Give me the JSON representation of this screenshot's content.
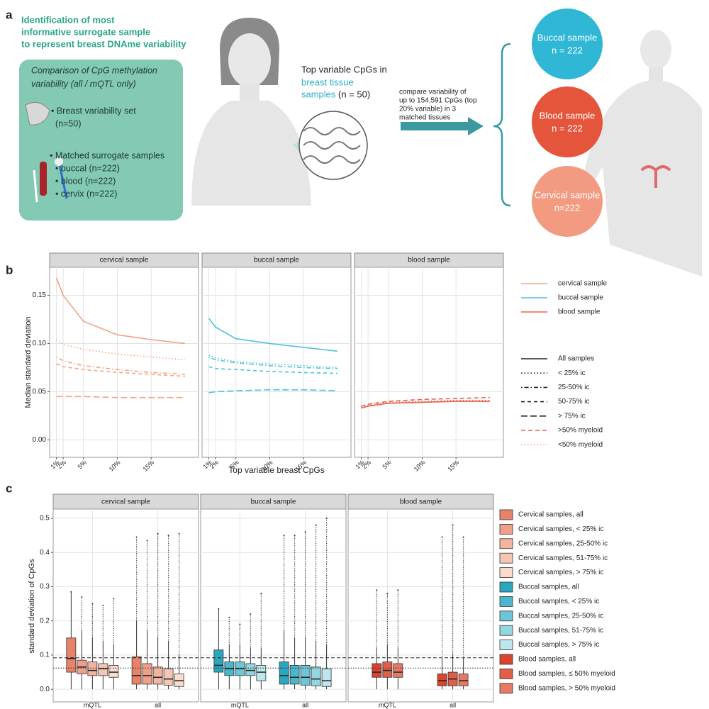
{
  "panel_a": {
    "label": "a",
    "heading": [
      "Identification of most",
      "informative surrogate sample",
      "to represent breast DNAme variability"
    ],
    "box_title": [
      "Comparison of CpG methylation",
      "variability (all / mQTL only)"
    ],
    "breast_set": [
      "• Breast variability set",
      "(n=50)"
    ],
    "matched": [
      "• Matched surrogate samples",
      "• buccal (n=222)",
      "• blood (n=222)",
      "• cervix (n=222)"
    ],
    "center_text": [
      "Top variable CpGs in",
      "breast tissue",
      "samples",
      "(n = 50)"
    ],
    "arrow_text": [
      "compare variability of",
      "up to 154,591 CpGs (top",
      "20% variable) in 3",
      "matched tissues"
    ],
    "circles": [
      {
        "title": "Buccal sample",
        "n": "n = 222",
        "color": "#2fb7d5"
      },
      {
        "title": "Blood sample",
        "n": "n = 222",
        "color": "#e4553b"
      },
      {
        "title": "Cervical sample",
        "n": "n=222",
        "color": "#f29b80"
      }
    ]
  },
  "chart_data": [
    {
      "type": "line",
      "label": "b",
      "xlabel": "Top variable breast CpGs",
      "ylabel": "Median standard deviation",
      "x": [
        1,
        2,
        5,
        10,
        15,
        20
      ],
      "xlim": [
        0,
        22
      ],
      "xticks": [
        {
          "value": 1,
          "label": "1%"
        },
        {
          "value": 2,
          "label": "2%"
        },
        {
          "value": 5,
          "label": "5%"
        },
        {
          "value": 10,
          "label": "10%"
        },
        {
          "value": 15,
          "label": "15%"
        }
      ],
      "ylim": [
        -0.018,
        0.179
      ],
      "yticks": [
        {
          "value": 0,
          "label": "0.00"
        },
        0.05,
        {
          "value": 0.1,
          "label": "0.10"
        },
        0.15
      ],
      "grid": true,
      "color_legend": [
        {
          "name": "cervical sample",
          "color": "#f4a286"
        },
        {
          "name": "buccal sample",
          "color": "#4cc3d9"
        },
        {
          "name": "blood sample",
          "color": "#e8624a"
        }
      ],
      "linetype_legend": [
        {
          "name": "All samples",
          "dash": "",
          "color": "#222222"
        },
        {
          "name": "< 25% ic",
          "dash": "1.5 3",
          "color": "#222222"
        },
        {
          "name": "25-50% ic",
          "dash": "1.5 3 6 3",
          "color": "#222222"
        },
        {
          "name": "50-75% ic",
          "dash": "5 4",
          "color": "#222222"
        },
        {
          "name": "> 75% ic",
          "dash": "9 4",
          "color": "#222222"
        },
        {
          "name": ">50% myeloid",
          "dash": "6 4",
          "color": "#e8624a"
        },
        {
          "name": "<50% myeloid",
          "dash": "1.5 3",
          "color": "#f4a286"
        }
      ],
      "facets": [
        {
          "title": "cervical sample",
          "series": [
            {
              "name": "All samples",
              "values": [
                0.168,
                0.15,
                0.123,
                0.109,
                0.104,
                0.1
              ]
            },
            {
              "name": "< 25% ic",
              "values": [
                0.104,
                0.099,
                0.094,
                0.089,
                0.086,
                0.083
              ]
            },
            {
              "name": "25-50% ic",
              "values": [
                0.086,
                0.082,
                0.077,
                0.073,
                0.07,
                0.068
              ]
            },
            {
              "name": "50-75% ic",
              "values": [
                0.079,
                0.076,
                0.073,
                0.07,
                0.068,
                0.066
              ]
            },
            {
              "name": "> 75% ic",
              "values": [
                0.045,
                0.045,
                0.045,
                0.044,
                0.044,
                0.044
              ]
            }
          ]
        },
        {
          "title": "buccal sample",
          "series": [
            {
              "name": "All samples",
              "values": [
                0.126,
                0.117,
                0.105,
                0.1,
                0.096,
                0.092
              ]
            },
            {
              "name": "< 25% ic",
              "values": [
                0.088,
                0.085,
                0.081,
                0.079,
                0.077,
                0.075
              ]
            },
            {
              "name": "25-50% ic",
              "values": [
                0.086,
                0.083,
                0.08,
                0.077,
                0.075,
                0.074
              ]
            },
            {
              "name": "50-75% ic",
              "values": [
                0.076,
                0.074,
                0.073,
                0.071,
                0.07,
                0.069
              ]
            },
            {
              "name": "> 75% ic",
              "values": [
                0.049,
                0.05,
                0.051,
                0.052,
                0.052,
                0.051
              ]
            }
          ]
        },
        {
          "title": "blood sample",
          "series": [
            {
              "name": ">50% myeloid",
              "values": [
                0.035,
                0.037,
                0.04,
                0.042,
                0.043,
                0.044
              ]
            },
            {
              "name": "<50% myeloid",
              "values": [
                0.034,
                0.036,
                0.039,
                0.04,
                0.041,
                0.041
              ]
            },
            {
              "name": "All samples",
              "values": [
                0.033,
                0.035,
                0.038,
                0.039,
                0.04,
                0.04
              ]
            }
          ]
        }
      ]
    },
    {
      "type": "box",
      "label": "c",
      "ylabel": "standard deviation of CpGs",
      "categories": [
        "mQTL",
        "all"
      ],
      "ylim": [
        -0.037,
        0.527
      ],
      "yticks": [
        {
          "value": 0,
          "label": "0.0"
        },
        0.1,
        0.2,
        0.3,
        0.4,
        0.5
      ],
      "grid": true,
      "reference_lines": [
        {
          "value": 0.092,
          "dash": "5 3"
        },
        {
          "value": 0.062,
          "dash": "1.5 2"
        }
      ],
      "facets": [
        {
          "title": "cervical sample",
          "series": [
            {
              "name": "Cervical samples, all",
              "color": "#e8836a",
              "boxes": [
                {
                  "whislo": 0,
                  "q1": 0.05,
                  "med": 0.09,
                  "q3": 0.15,
                  "whishi": 0.285,
                  "max": 0.285
                },
                {
                  "whislo": 0,
                  "q1": 0.015,
                  "med": 0.04,
                  "q3": 0.095,
                  "whishi": 0.2,
                  "max": 0.445
                }
              ]
            },
            {
              "name": "Cervical samples, < 25% ic",
              "color": "#f0a088",
              "boxes": [
                {
                  "whislo": 0,
                  "q1": 0.045,
                  "med": 0.065,
                  "q3": 0.085,
                  "whishi": 0.17,
                  "max": 0.27
                },
                {
                  "whislo": 0,
                  "q1": 0.015,
                  "med": 0.04,
                  "q3": 0.075,
                  "whishi": 0.17,
                  "max": 0.435
                }
              ]
            },
            {
              "name": "Cervical samples, 25-50% ic",
              "color": "#f3b39e",
              "boxes": [
                {
                  "whislo": 0,
                  "q1": 0.04,
                  "med": 0.055,
                  "q3": 0.08,
                  "whishi": 0.15,
                  "max": 0.25
                },
                {
                  "whislo": 0,
                  "q1": 0.015,
                  "med": 0.035,
                  "q3": 0.065,
                  "whishi": 0.15,
                  "max": 0.455
                }
              ]
            },
            {
              "name": "Cervical samples, 51-75% ic",
              "color": "#f6c6b5",
              "boxes": [
                {
                  "whislo": 0,
                  "q1": 0.04,
                  "med": 0.06,
                  "q3": 0.075,
                  "whishi": 0.14,
                  "max": 0.245
                },
                {
                  "whislo": 0,
                  "q1": 0.012,
                  "med": 0.03,
                  "q3": 0.06,
                  "whishi": 0.14,
                  "max": 0.45
                }
              ]
            },
            {
              "name": "Cervical samples, > 75% ic",
              "color": "#fadccf",
              "boxes": [
                {
                  "whislo": 0,
                  "q1": 0.035,
                  "med": 0.05,
                  "q3": 0.07,
                  "whishi": 0.13,
                  "max": 0.265
                },
                {
                  "whislo": 0,
                  "q1": 0.008,
                  "med": 0.025,
                  "q3": 0.045,
                  "whishi": 0.1,
                  "max": 0.455
                }
              ]
            }
          ]
        },
        {
          "title": "buccal sample",
          "series": [
            {
              "name": "Buccal samples, all",
              "color": "#2aa6be",
              "boxes": [
                {
                  "whislo": 0,
                  "q1": 0.05,
                  "med": 0.07,
                  "q3": 0.115,
                  "whishi": 0.235,
                  "max": 0.235
                },
                {
                  "whislo": 0,
                  "q1": 0.015,
                  "med": 0.04,
                  "q3": 0.08,
                  "whishi": 0.17,
                  "max": 0.45
                }
              ]
            },
            {
              "name": "Buccal samples, < 25% ic",
              "color": "#4ab7cc",
              "boxes": [
                {
                  "whislo": 0,
                  "q1": 0.04,
                  "med": 0.06,
                  "q3": 0.08,
                  "whishi": 0.13,
                  "max": 0.21
                },
                {
                  "whislo": 0,
                  "q1": 0.015,
                  "med": 0.035,
                  "q3": 0.07,
                  "whishi": 0.15,
                  "max": 0.45
                }
              ]
            },
            {
              "name": "Buccal samples, 25-50% ic",
              "color": "#6cc6d7",
              "boxes": [
                {
                  "whislo": 0,
                  "q1": 0.04,
                  "med": 0.06,
                  "q3": 0.08,
                  "whishi": 0.13,
                  "max": 0.19
                },
                {
                  "whislo": 0,
                  "q1": 0.012,
                  "med": 0.035,
                  "q3": 0.07,
                  "whishi": 0.15,
                  "max": 0.46
                }
              ]
            },
            {
              "name": "Buccal samples, 51-75% ic",
              "color": "#93d6e2",
              "boxes": [
                {
                  "whislo": 0,
                  "q1": 0.04,
                  "med": 0.055,
                  "q3": 0.075,
                  "whishi": 0.12,
                  "max": 0.22
                },
                {
                  "whislo": 0,
                  "q1": 0.01,
                  "med": 0.03,
                  "q3": 0.065,
                  "whishi": 0.14,
                  "max": 0.48
                }
              ]
            },
            {
              "name": "Buccal samples, > 75% ic",
              "color": "#bfe6ee",
              "boxes": [
                {
                  "whislo": 0,
                  "q1": 0.025,
                  "med": 0.05,
                  "q3": 0.07,
                  "whishi": 0.12,
                  "max": 0.28
                },
                {
                  "whislo": 0,
                  "q1": 0.008,
                  "med": 0.025,
                  "q3": 0.06,
                  "whishi": 0.13,
                  "max": 0.5
                }
              ]
            }
          ]
        },
        {
          "title": "blood sample",
          "series": [
            {
              "name": "Blood samples, all",
              "color": "#d9442f",
              "boxes": [
                {
                  "whislo": 0,
                  "q1": 0.035,
                  "med": 0.05,
                  "q3": 0.075,
                  "whishi": 0.12,
                  "max": 0.29
                },
                {
                  "whislo": 0,
                  "q1": 0.01,
                  "med": 0.025,
                  "q3": 0.045,
                  "whishi": 0.09,
                  "max": 0.445
                }
              ]
            },
            {
              "name": "Blood samples, ≤ 50% myeloid",
              "color": "#e15f48",
              "boxes": [
                {
                  "whislo": 0,
                  "q1": 0.035,
                  "med": 0.055,
                  "q3": 0.08,
                  "whishi": 0.13,
                  "max": 0.28
                },
                {
                  "whislo": 0,
                  "q1": 0.01,
                  "med": 0.03,
                  "q3": 0.05,
                  "whishi": 0.1,
                  "max": 0.48
                }
              ]
            },
            {
              "name": "Blood samples, > 50% myeloid",
              "color": "#e87a63",
              "boxes": [
                {
                  "whislo": 0,
                  "q1": 0.035,
                  "med": 0.05,
                  "q3": 0.075,
                  "whishi": 0.12,
                  "max": 0.29
                },
                {
                  "whislo": 0,
                  "q1": 0.01,
                  "med": 0.025,
                  "q3": 0.045,
                  "whishi": 0.09,
                  "max": 0.445
                }
              ]
            }
          ]
        }
      ]
    }
  ]
}
